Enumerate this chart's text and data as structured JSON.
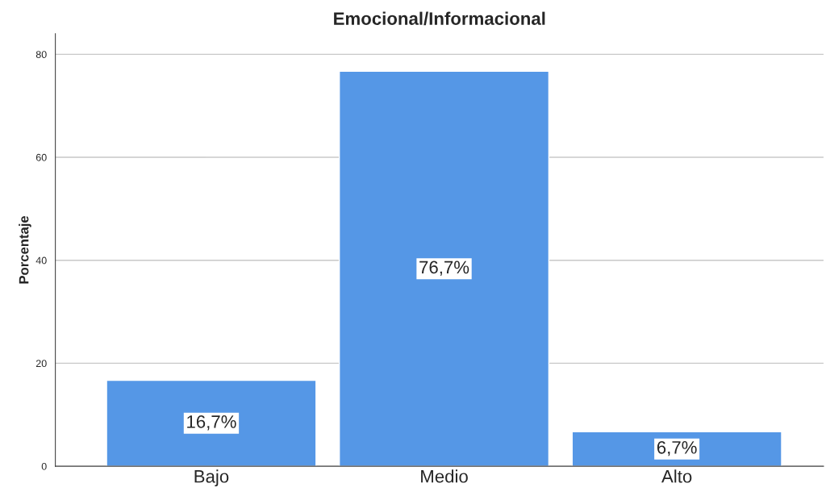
{
  "chart_data": {
    "type": "bar",
    "title": "Emocional/Informacional",
    "ylabel": "Porcentaje",
    "categories": [
      "Bajo",
      "Medio",
      "Alto"
    ],
    "values": [
      16.7,
      76.7,
      6.7
    ],
    "value_labels": [
      "16,7%",
      "76,7%",
      "6,7%"
    ],
    "color": "#5597e6",
    "ylim": [
      0,
      84
    ],
    "yticks": [
      0,
      20,
      40,
      60,
      80
    ],
    "grid": "y"
  }
}
